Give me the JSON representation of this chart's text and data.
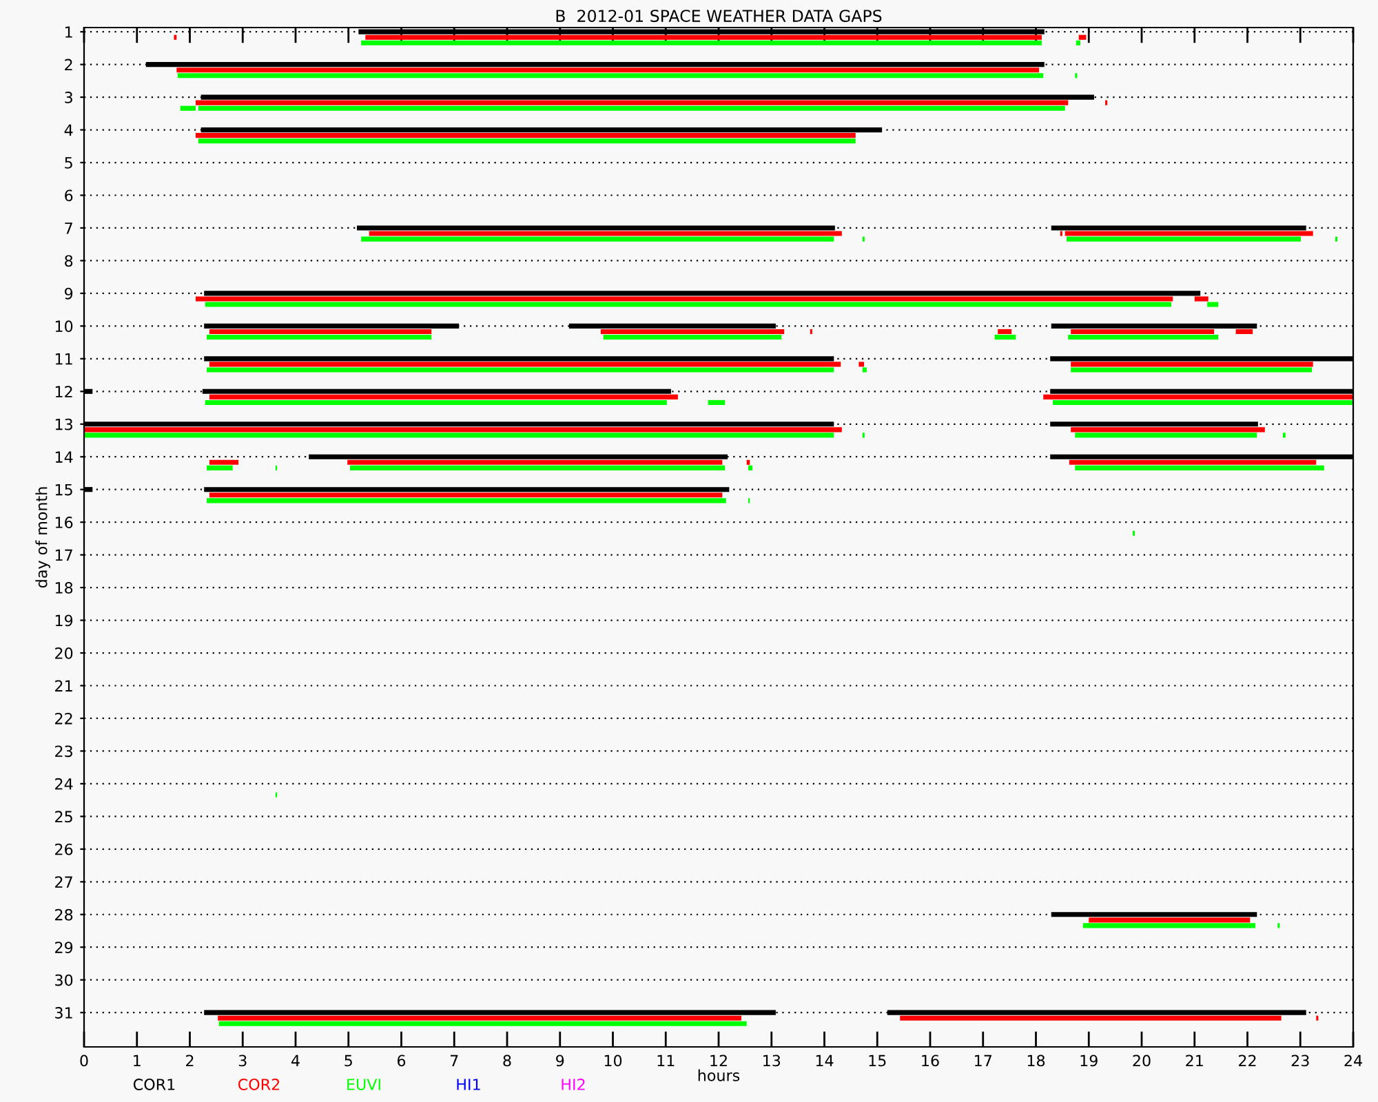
{
  "chart_data": {
    "type": "bar",
    "orientation": "horizontal",
    "title": "B  2012-01 SPACE WEATHER DATA GAPS",
    "xlabel": "hours",
    "ylabel": "day of month",
    "categories": [
      "1",
      "2",
      "3",
      "4",
      "5",
      "6",
      "7",
      "8",
      "9",
      "10",
      "11",
      "12",
      "13",
      "14",
      "15",
      "16",
      "17",
      "18",
      "19",
      "20",
      "21",
      "22",
      "23",
      "24",
      "25",
      "26",
      "27",
      "28",
      "29",
      "30",
      "31"
    ],
    "xlim": [
      0,
      24
    ],
    "xticks": [
      0,
      1,
      2,
      3,
      4,
      5,
      6,
      7,
      8,
      9,
      10,
      11,
      12,
      13,
      14,
      15,
      16,
      17,
      18,
      19,
      20,
      21,
      22,
      23,
      24
    ],
    "grid": "y",
    "legend": "bottom",
    "series": [
      {
        "name": "COR1",
        "color": "#000000",
        "base": [
          5.19,
          1.17,
          2.21,
          2.21,
          null,
          null,
          5.16,
          null,
          2.27,
          2.27,
          2.27,
          0,
          0,
          4.25,
          0,
          null,
          null,
          null,
          null,
          null,
          null,
          null,
          null,
          null,
          null,
          null,
          null,
          18.29,
          null,
          null,
          2.27
        ],
        "values": [
          12.97,
          16.99,
          16.89,
          12.88,
          null,
          null,
          9.04,
          null,
          18.84,
          4.82,
          11.91,
          0.16,
          14.18,
          7.92,
          0.16,
          null,
          null,
          null,
          null,
          null,
          null,
          null,
          null,
          null,
          null,
          null,
          null,
          3.89,
          null,
          null,
          10.81
        ]
      },
      {
        "color": "#000000",
        "base": [
          null,
          null,
          null,
          null,
          null,
          null,
          18.29,
          null,
          null,
          9.17,
          18.27,
          2.24,
          18.27,
          18.27,
          2.27,
          null,
          null,
          null,
          null,
          null,
          null,
          null,
          null,
          null,
          null,
          null,
          null,
          null,
          null,
          null,
          15.19
        ],
        "values": [
          null,
          null,
          null,
          null,
          null,
          null,
          4.82,
          null,
          null,
          3.91,
          5.73,
          8.86,
          3.93,
          5.73,
          9.93,
          null,
          null,
          null,
          null,
          null,
          null,
          null,
          null,
          null,
          null,
          null,
          null,
          null,
          null,
          null,
          7.92
        ]
      },
      {
        "color": "#000000",
        "base": [
          null,
          null,
          null,
          null,
          null,
          null,
          null,
          null,
          null,
          18.29,
          null,
          18.27,
          null,
          null,
          null,
          null,
          null,
          null,
          null,
          null,
          null,
          null,
          null,
          null,
          null,
          null,
          null,
          null,
          null,
          null,
          null
        ],
        "values": [
          null,
          null,
          null,
          null,
          null,
          null,
          null,
          null,
          null,
          3.89,
          null,
          5.73,
          null,
          null,
          null,
          null,
          null,
          null,
          null,
          null,
          null,
          null,
          null,
          null,
          null,
          null,
          null,
          null,
          null,
          null,
          null
        ]
      },
      {
        "name": "COR2",
        "color": "#ff0000",
        "base": [
          1.7,
          1.75,
          2.11,
          2.11,
          null,
          null,
          5.39,
          null,
          2.11,
          2.37,
          2.37,
          2.37,
          0,
          2.37,
          2.37,
          null,
          null,
          null,
          null,
          null,
          null,
          null,
          null,
          null,
          null,
          null,
          null,
          19.0,
          null,
          null,
          2.53
        ],
        "values": [
          0.05,
          16.31,
          16.5,
          12.48,
          null,
          null,
          8.94,
          null,
          18.48,
          4.2,
          11.94,
          8.86,
          14.33,
          0.55,
          9.7,
          null,
          null,
          null,
          null,
          null,
          null,
          null,
          null,
          null,
          null,
          null,
          null,
          3.05,
          null,
          null,
          9.9
        ]
      },
      {
        "color": "#ff0000",
        "base": [
          5.32,
          null,
          19.31,
          null,
          null,
          null,
          18.46,
          null,
          21.0,
          9.77,
          14.65,
          18.14,
          18.66,
          4.98,
          null,
          null,
          null,
          null,
          null,
          null,
          null,
          null,
          null,
          null,
          null,
          null,
          null,
          null,
          null,
          null,
          15.43
        ],
        "values": [
          12.79,
          null,
          0.04,
          null,
          null,
          null,
          0.04,
          null,
          0.26,
          3.47,
          0.1,
          5.86,
          3.67,
          7.09,
          null,
          null,
          null,
          null,
          null,
          null,
          null,
          null,
          null,
          null,
          null,
          null,
          null,
          null,
          null,
          null,
          7.21
        ]
      },
      {
        "color": "#ff0000",
        "base": [
          18.81,
          null,
          null,
          null,
          null,
          null,
          18.55,
          null,
          null,
          13.73,
          18.66,
          null,
          null,
          12.53,
          null,
          null,
          null,
          null,
          null,
          null,
          null,
          null,
          null,
          null,
          null,
          null,
          null,
          null,
          null,
          null,
          23.3
        ],
        "values": [
          0.14,
          null,
          null,
          null,
          null,
          null,
          4.69,
          null,
          null,
          0.04,
          4.58,
          null,
          null,
          0.06,
          null,
          null,
          null,
          null,
          null,
          null,
          null,
          null,
          null,
          null,
          null,
          null,
          null,
          null,
          null,
          null,
          0.04
        ]
      },
      {
        "color": "#ff0000",
        "base": [
          null,
          null,
          null,
          null,
          null,
          null,
          null,
          null,
          null,
          17.28,
          null,
          null,
          null,
          18.63,
          null,
          null,
          null,
          null,
          null,
          null,
          null,
          null,
          null,
          null,
          null,
          null,
          null,
          null,
          null,
          null,
          null
        ],
        "values": [
          null,
          null,
          null,
          null,
          null,
          null,
          null,
          null,
          null,
          0.26,
          null,
          null,
          null,
          4.67,
          null,
          null,
          null,
          null,
          null,
          null,
          null,
          null,
          null,
          null,
          null,
          null,
          null,
          null,
          null,
          null,
          null
        ]
      },
      {
        "color": "#ff0000",
        "base": [
          null,
          null,
          null,
          null,
          null,
          null,
          null,
          null,
          null,
          18.66,
          null,
          null,
          null,
          null,
          null,
          null,
          null,
          null,
          null,
          null,
          null,
          null,
          null,
          null,
          null,
          null,
          null,
          null,
          null,
          null,
          null
        ],
        "values": [
          null,
          null,
          null,
          null,
          null,
          null,
          null,
          null,
          null,
          2.71,
          null,
          null,
          null,
          null,
          null,
          null,
          null,
          null,
          null,
          null,
          null,
          null,
          null,
          null,
          null,
          null,
          null,
          null,
          null,
          null,
          null
        ]
      },
      {
        "color": "#ff0000",
        "base": [
          null,
          null,
          null,
          null,
          null,
          null,
          null,
          null,
          null,
          21.78,
          null,
          null,
          null,
          null,
          null,
          null,
          null,
          null,
          null,
          null,
          null,
          null,
          null,
          null,
          null,
          null,
          null,
          null,
          null,
          null,
          null
        ],
        "values": [
          null,
          null,
          null,
          null,
          null,
          null,
          null,
          null,
          null,
          0.32,
          null,
          null,
          null,
          null,
          null,
          null,
          null,
          null,
          null,
          null,
          null,
          null,
          null,
          null,
          null,
          null,
          null,
          null,
          null,
          null,
          null
        ]
      },
      {
        "name": "EUVI",
        "color": "#00ff00",
        "base": [
          5.24,
          1.77,
          1.82,
          2.16,
          null,
          null,
          5.24,
          null,
          2.29,
          2.32,
          2.32,
          2.29,
          0,
          2.32,
          2.32,
          19.83,
          null,
          null,
          null,
          null,
          null,
          null,
          null,
          3.62,
          null,
          null,
          null,
          18.89,
          null,
          null,
          2.55
        ],
        "values": [
          12.87,
          16.37,
          0.29,
          12.43,
          null,
          null,
          8.94,
          null,
          18.27,
          4.25,
          11.86,
          8.73,
          14.18,
          0.49,
          9.82,
          0.04,
          null,
          null,
          null,
          null,
          null,
          null,
          null,
          0.03,
          null,
          null,
          null,
          3.26,
          null,
          null,
          9.98
        ]
      },
      {
        "color": "#00ff00",
        "base": [
          18.76,
          18.74,
          2.16,
          null,
          null,
          null,
          14.72,
          null,
          21.24,
          9.82,
          14.72,
          11.8,
          14.72,
          3.62,
          12.56,
          null,
          null,
          null,
          null,
          null,
          null,
          null,
          null,
          null,
          null,
          null,
          null,
          22.57,
          null,
          null,
          null
        ],
        "values": [
          0.08,
          0.04,
          16.39,
          null,
          null,
          null,
          0.04,
          null,
          0.21,
          3.37,
          0.08,
          0.32,
          0.04,
          0.03,
          0.03,
          null,
          null,
          null,
          null,
          null,
          null,
          null,
          null,
          null,
          null,
          null,
          null,
          0.04,
          null,
          null,
          null
        ]
      },
      {
        "color": "#00ff00",
        "base": [
          null,
          null,
          null,
          null,
          null,
          null,
          18.58,
          null,
          null,
          17.22,
          18.66,
          18.32,
          18.74,
          5.03,
          null,
          null,
          null,
          null,
          null,
          null,
          null,
          null,
          null,
          null,
          null,
          null,
          null,
          null,
          null,
          null,
          null
        ],
        "values": [
          null,
          null,
          null,
          null,
          null,
          null,
          4.43,
          null,
          null,
          0.4,
          4.56,
          5.68,
          3.44,
          7.09,
          null,
          null,
          null,
          null,
          null,
          null,
          null,
          null,
          null,
          null,
          null,
          null,
          null,
          null,
          null,
          null,
          null
        ]
      },
      {
        "color": "#00ff00",
        "base": [
          null,
          null,
          null,
          null,
          null,
          null,
          23.66,
          null,
          null,
          18.61,
          null,
          null,
          22.67,
          12.56,
          null,
          null,
          null,
          null,
          null,
          null,
          null,
          null,
          null,
          null,
          null,
          null,
          null,
          null,
          null,
          null,
          null
        ],
        "values": [
          null,
          null,
          null,
          null,
          null,
          null,
          0.04,
          null,
          null,
          2.84,
          null,
          null,
          0.05,
          0.08,
          null,
          null,
          null,
          null,
          null,
          null,
          null,
          null,
          null,
          null,
          null,
          null,
          null,
          null,
          null,
          null,
          null
        ]
      },
      {
        "color": "#00ff00",
        "base": [
          null,
          null,
          null,
          null,
          null,
          null,
          null,
          null,
          null,
          null,
          null,
          null,
          null,
          18.74,
          null,
          null,
          null,
          null,
          null,
          null,
          null,
          null,
          null,
          null,
          null,
          null,
          null,
          null,
          null,
          null,
          null
        ],
        "values": [
          null,
          null,
          null,
          null,
          null,
          null,
          null,
          null,
          null,
          null,
          null,
          null,
          null,
          4.71,
          null,
          null,
          null,
          null,
          null,
          null,
          null,
          null,
          null,
          null,
          null,
          null,
          null,
          null,
          null,
          null,
          null
        ]
      },
      {
        "name": "HI1",
        "color": "#0000ff",
        "values": [
          null,
          null,
          null,
          null,
          null,
          null,
          null,
          null,
          null,
          null,
          null,
          null,
          null,
          null,
          null,
          null,
          null,
          null,
          null,
          null,
          null,
          null,
          null,
          null,
          null,
          null,
          null,
          null,
          null,
          null,
          null
        ]
      },
      {
        "name": "HI2",
        "color": "#ff00ff",
        "values": [
          null,
          null,
          null,
          null,
          null,
          null,
          null,
          null,
          null,
          null,
          null,
          null,
          null,
          null,
          null,
          null,
          null,
          null,
          null,
          null,
          null,
          null,
          null,
          null,
          null,
          null,
          null,
          null,
          null,
          null,
          null
        ]
      }
    ]
  }
}
